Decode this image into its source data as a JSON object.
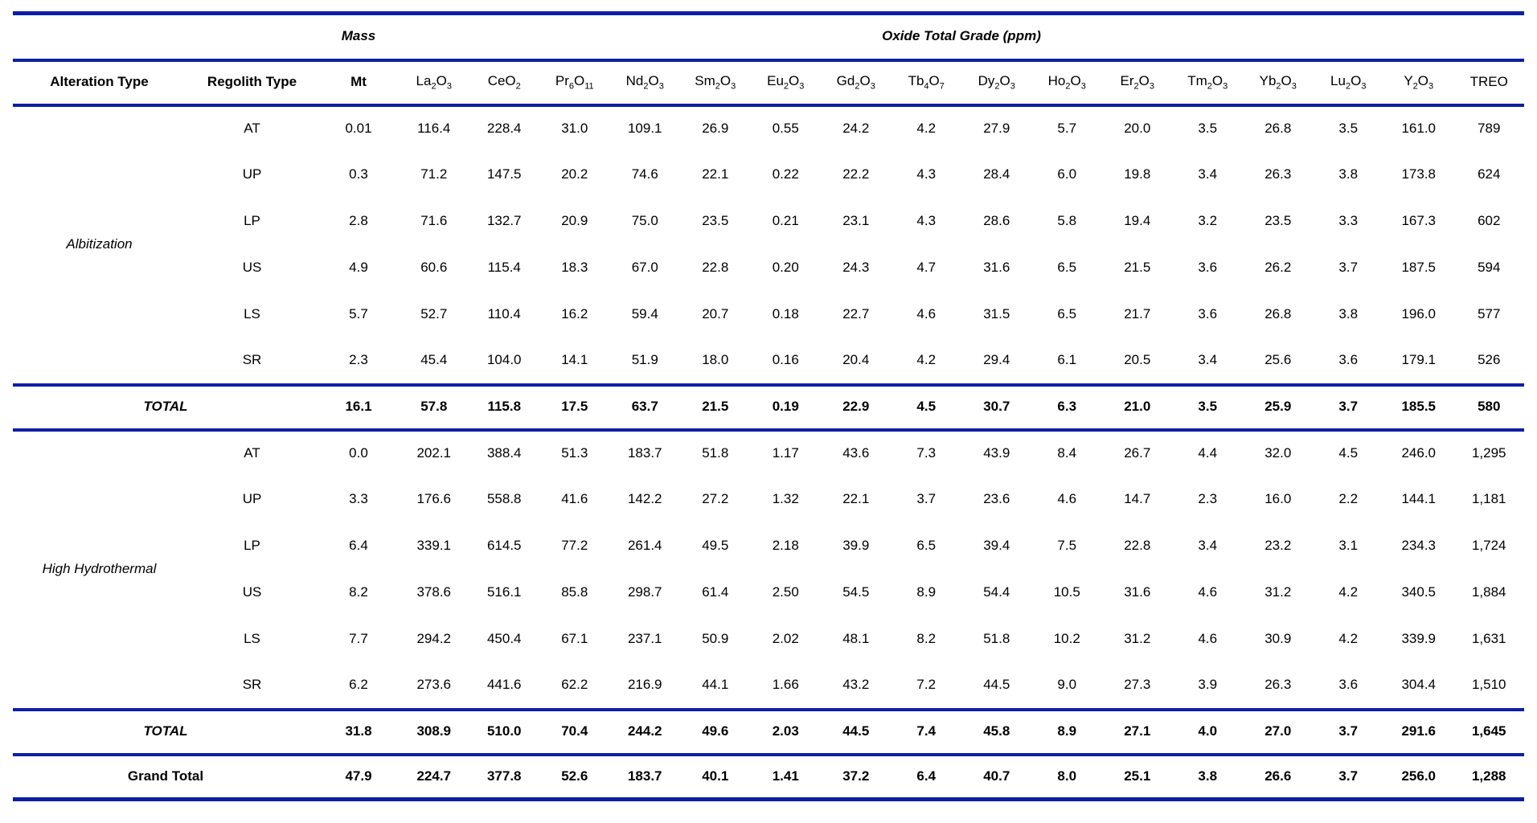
{
  "table": {
    "accent_blue": "#0c1fa3",
    "group_header": {
      "mass_label": "Mass",
      "oxide_label": "Oxide Total Grade (ppm)"
    },
    "columns": [
      "Alteration Type",
      "Regolith Type",
      "Mt",
      "La2O3",
      "CeO2",
      "Pr6O11",
      "Nd2O3",
      "Sm2O3",
      "Eu2O3",
      "Gd2O3",
      "Tb4O7",
      "Dy2O3",
      "Ho2O3",
      "Er2O3",
      "Tm2O3",
      "Yb2O3",
      "Lu2O3",
      "Y2O3",
      "TREO"
    ],
    "sections": [
      {
        "alteration_type": "Albitization",
        "rows": [
          {
            "regolith": "AT",
            "values": [
              "0.01",
              "116.4",
              "228.4",
              "31.0",
              "109.1",
              "26.9",
              "0.55",
              "24.2",
              "4.2",
              "27.9",
              "5.7",
              "20.0",
              "3.5",
              "26.8",
              "3.5",
              "161.0",
              "789"
            ]
          },
          {
            "regolith": "UP",
            "values": [
              "0.3",
              "71.2",
              "147.5",
              "20.2",
              "74.6",
              "22.1",
              "0.22",
              "22.2",
              "4.3",
              "28.4",
              "6.0",
              "19.8",
              "3.4",
              "26.3",
              "3.8",
              "173.8",
              "624"
            ]
          },
          {
            "regolith": "LP",
            "values": [
              "2.8",
              "71.6",
              "132.7",
              "20.9",
              "75.0",
              "23.5",
              "0.21",
              "23.1",
              "4.3",
              "28.6",
              "5.8",
              "19.4",
              "3.2",
              "23.5",
              "3.3",
              "167.3",
              "602"
            ]
          },
          {
            "regolith": "US",
            "values": [
              "4.9",
              "60.6",
              "115.4",
              "18.3",
              "67.0",
              "22.8",
              "0.20",
              "24.3",
              "4.7",
              "31.6",
              "6.5",
              "21.5",
              "3.6",
              "26.2",
              "3.7",
              "187.5",
              "594"
            ]
          },
          {
            "regolith": "LS",
            "values": [
              "5.7",
              "52.7",
              "110.4",
              "16.2",
              "59.4",
              "20.7",
              "0.18",
              "22.7",
              "4.6",
              "31.5",
              "6.5",
              "21.7",
              "3.6",
              "26.8",
              "3.8",
              "196.0",
              "577"
            ]
          },
          {
            "regolith": "SR",
            "values": [
              "2.3",
              "45.4",
              "104.0",
              "14.1",
              "51.9",
              "18.0",
              "0.16",
              "20.4",
              "4.2",
              "29.4",
              "6.1",
              "20.5",
              "3.4",
              "25.6",
              "3.6",
              "179.1",
              "526"
            ]
          }
        ],
        "total": {
          "label": "TOTAL",
          "values": [
            "16.1",
            "57.8",
            "115.8",
            "17.5",
            "63.7",
            "21.5",
            "0.19",
            "22.9",
            "4.5",
            "30.7",
            "6.3",
            "21.0",
            "3.5",
            "25.9",
            "3.7",
            "185.5",
            "580"
          ]
        }
      },
      {
        "alteration_type": "High Hydrothermal",
        "rows": [
          {
            "regolith": "AT",
            "values": [
              "0.0",
              "202.1",
              "388.4",
              "51.3",
              "183.7",
              "51.8",
              "1.17",
              "43.6",
              "7.3",
              "43.9",
              "8.4",
              "26.7",
              "4.4",
              "32.0",
              "4.5",
              "246.0",
              "1,295"
            ]
          },
          {
            "regolith": "UP",
            "values": [
              "3.3",
              "176.6",
              "558.8",
              "41.6",
              "142.2",
              "27.2",
              "1.32",
              "22.1",
              "3.7",
              "23.6",
              "4.6",
              "14.7",
              "2.3",
              "16.0",
              "2.2",
              "144.1",
              "1,181"
            ]
          },
          {
            "regolith": "LP",
            "values": [
              "6.4",
              "339.1",
              "614.5",
              "77.2",
              "261.4",
              "49.5",
              "2.18",
              "39.9",
              "6.5",
              "39.4",
              "7.5",
              "22.8",
              "3.4",
              "23.2",
              "3.1",
              "234.3",
              "1,724"
            ]
          },
          {
            "regolith": "US",
            "values": [
              "8.2",
              "378.6",
              "516.1",
              "85.8",
              "298.7",
              "61.4",
              "2.50",
              "54.5",
              "8.9",
              "54.4",
              "10.5",
              "31.6",
              "4.6",
              "31.2",
              "4.2",
              "340.5",
              "1,884"
            ]
          },
          {
            "regolith": "LS",
            "values": [
              "7.7",
              "294.2",
              "450.4",
              "67.1",
              "237.1",
              "50.9",
              "2.02",
              "48.1",
              "8.2",
              "51.8",
              "10.2",
              "31.2",
              "4.6",
              "30.9",
              "4.2",
              "339.9",
              "1,631"
            ]
          },
          {
            "regolith": "SR",
            "values": [
              "6.2",
              "273.6",
              "441.6",
              "62.2",
              "216.9",
              "44.1",
              "1.66",
              "43.2",
              "7.2",
              "44.5",
              "9.0",
              "27.3",
              "3.9",
              "26.3",
              "3.6",
              "304.4",
              "1,510"
            ]
          }
        ],
        "total": {
          "label": "TOTAL",
          "values": [
            "31.8",
            "308.9",
            "510.0",
            "70.4",
            "244.2",
            "49.6",
            "2.03",
            "44.5",
            "7.4",
            "45.8",
            "8.9",
            "27.1",
            "4.0",
            "27.0",
            "3.7",
            "291.6",
            "1,645"
          ]
        }
      }
    ],
    "grand_total": {
      "label": "Grand Total",
      "values": [
        "47.9",
        "224.7",
        "377.8",
        "52.6",
        "183.7",
        "40.1",
        "1.41",
        "37.2",
        "6.4",
        "40.7",
        "8.0",
        "25.1",
        "3.8",
        "26.6",
        "3.7",
        "256.0",
        "1,288"
      ]
    }
  }
}
